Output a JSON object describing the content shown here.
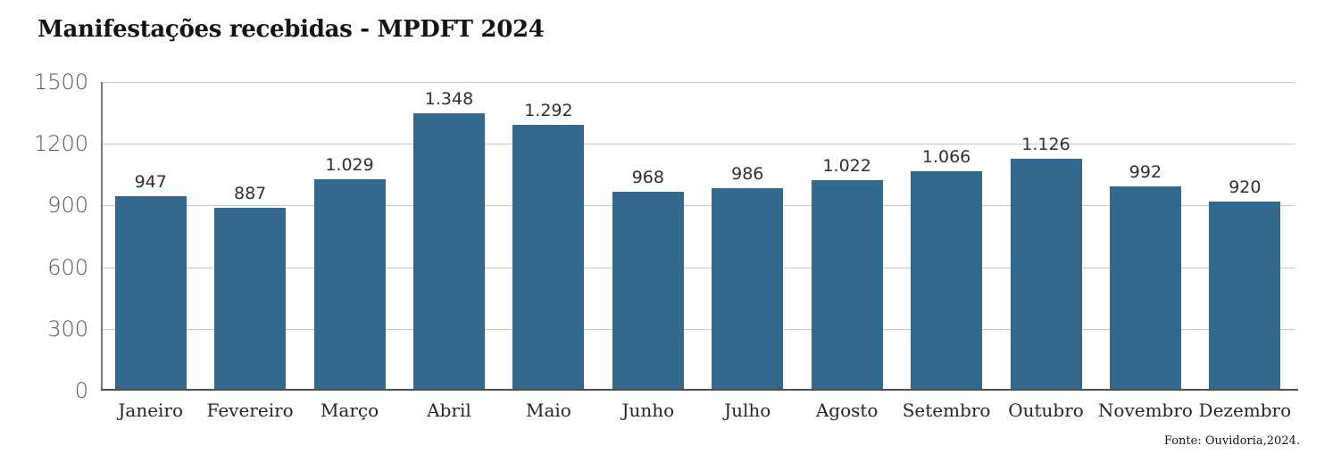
{
  "title": "Manifestações recebidas - MPDFT 2024",
  "source_note": "Fonte: Ouvidoria,2024.",
  "colors": {
    "bar": "#34698E",
    "gridline": "#c7c7c7",
    "y_axis_line": "#7a7a7a",
    "x_axis_line": "#4f4f4f",
    "title_text": "#141414",
    "tick_text": "#595959",
    "value_label_text": "#303030",
    "month_label_text": "#262626"
  },
  "chart_data": {
    "type": "bar",
    "title": "Manifestações recebidas - MPDFT 2024",
    "categories": [
      "Janeiro",
      "Fevereiro",
      "Março",
      "Abril",
      "Maio",
      "Junho",
      "Julho",
      "Agosto",
      "Setembro",
      "Outubro",
      "Novembro",
      "Dezembro"
    ],
    "values": [
      947,
      887,
      1029,
      1348,
      1292,
      968,
      986,
      1022,
      1066,
      1126,
      992,
      920
    ],
    "value_labels": [
      "947",
      "887",
      "1.029",
      "1.348",
      "1.292",
      "968",
      "986",
      "1.022",
      "1.066",
      "1.126",
      "992",
      "920"
    ],
    "xlabel": "",
    "ylabel": "",
    "ylim": [
      0,
      1500
    ],
    "yticks": [
      0,
      300,
      600,
      900,
      1200,
      1500
    ],
    "grid": true,
    "legend": false,
    "annotation": "Fonte: Ouvidoria,2024."
  }
}
